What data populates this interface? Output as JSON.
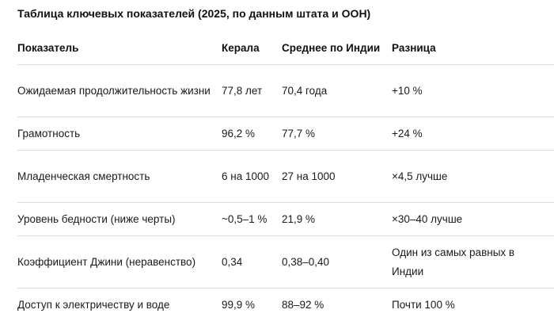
{
  "title": "Таблица ключевых показателей (2025, по данным штата и ООН)",
  "headers": [
    "Показатель",
    "Керала",
    "Среднее по Индии",
    "Разница"
  ],
  "rows": [
    [
      "Ожидаемая продолжительность жизни",
      "77,8 лет",
      "70,4 года",
      "+10 %"
    ],
    [
      "Грамотность",
      "96,2 %",
      "77,7 %",
      "+24 %"
    ],
    [
      "Младенческая смертность",
      "6 на 1000",
      "27 на 1000",
      "×4,5 лучше"
    ],
    [
      "Уровень бедности (ниже черты)",
      "~0,5–1 %",
      "21,9 %",
      "×30–40 лучше"
    ],
    [
      "Коэффициент Джини (неравенство)",
      "0,34",
      "0,38–0,40",
      "Один из самых равных в Индии"
    ],
    [
      "Доступ к электричеству и воде",
      "99,9 %",
      "88–92 %",
      "Почти 100 %"
    ]
  ]
}
